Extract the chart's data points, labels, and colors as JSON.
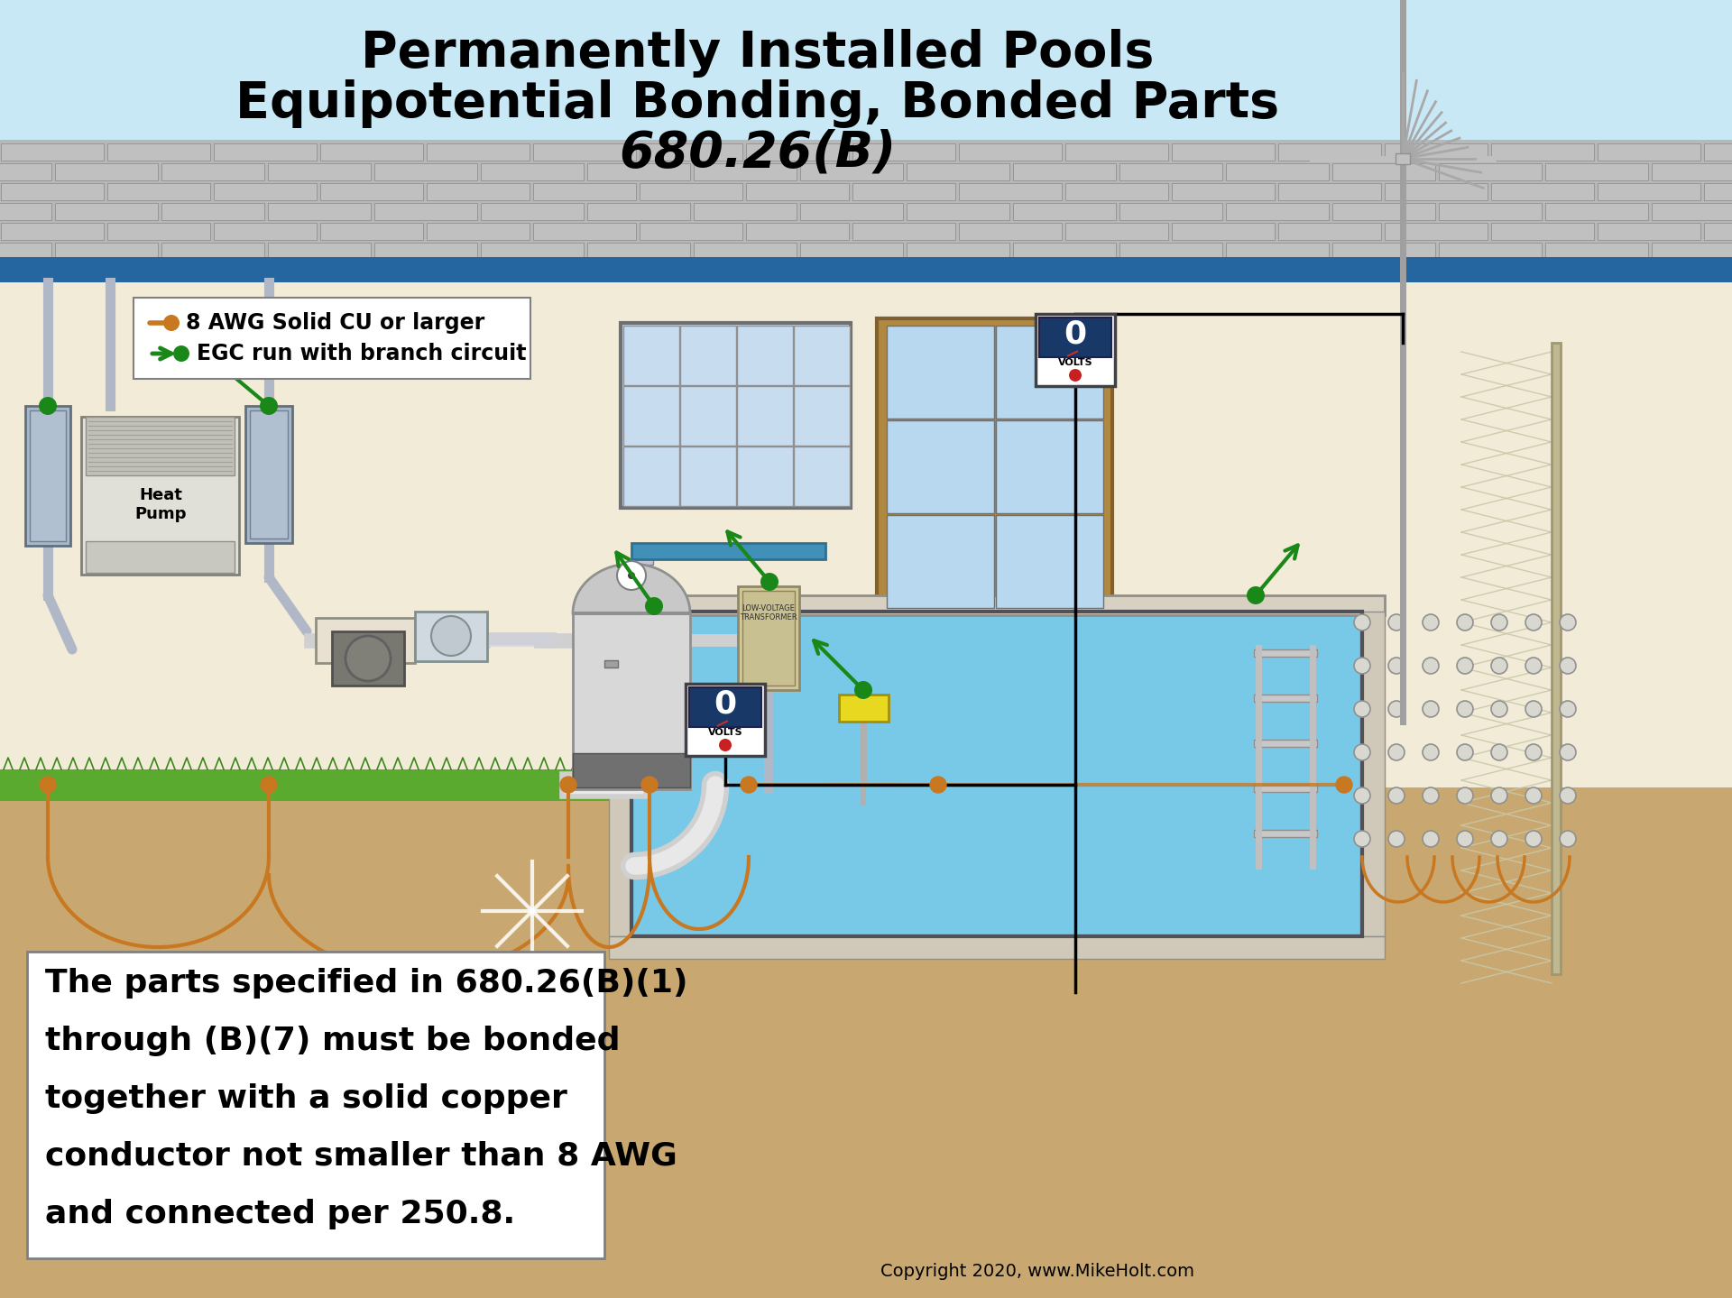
{
  "title_line1": "Permanently Installed Pools",
  "title_line2": "Equipotential Bonding, Bonded Parts",
  "title_line3": "680.26(B)",
  "bg_sky": "#c8e8f5",
  "bg_wall": "#f2ebd8",
  "bg_brick": "#c8c8c8",
  "bg_blue_trim": "#2565a0",
  "bg_dirt": "#c8a870",
  "bg_grass": "#5aaa30",
  "bg_pool": "#78c8e8",
  "legend_text1": "8 AWG Solid CU or larger",
  "legend_text2": "EGC run with branch circuit",
  "body_text_line1": "The parts specified in 680.26(B)(1)",
  "body_text_line2": "through (B)(7) must be bonded",
  "body_text_line3": "together with a solid copper",
  "body_text_line4": "conductor not smaller than 8 AWG",
  "body_text_line5": "and connected per 250.8.",
  "copyright": "Copyright 2020, www.MikeHolt.com",
  "orange_wire": "#c87820",
  "green_arrow": "#1a8818",
  "black_wire": "#111111",
  "volts_bg": "#1a3a6a"
}
